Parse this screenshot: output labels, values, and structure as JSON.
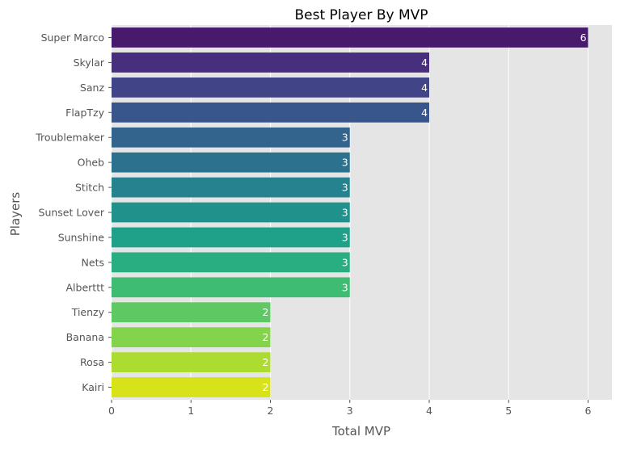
{
  "chart_data": {
    "type": "bar",
    "orientation": "horizontal",
    "title": "Best Player By MVP",
    "xlabel": "Total MVP",
    "ylabel": "Players",
    "categories": [
      "Super Marco",
      "Skylar",
      "Sanz",
      "FlapTzy",
      "Troublemaker",
      "Oheb",
      "Stitch",
      "Sunset Lover",
      "Sunshine",
      "Nets",
      "Alberttt",
      "Tienzy",
      "Banana",
      "Rosa",
      "Kairi"
    ],
    "values": [
      6,
      4,
      4,
      4,
      3,
      3,
      3,
      3,
      3,
      3,
      3,
      2,
      2,
      2,
      2
    ],
    "data_labels": [
      "6",
      "4",
      "4",
      "4",
      "3",
      "3",
      "3",
      "3",
      "3",
      "3",
      "3",
      "2",
      "2",
      "2",
      "2"
    ],
    "xlim": [
      0,
      6.3
    ],
    "xticks": [
      0,
      1,
      2,
      3,
      4,
      5,
      6
    ],
    "xtick_labels": [
      "0",
      "1",
      "2",
      "3",
      "4",
      "5",
      "6"
    ],
    "grid": true,
    "colormap": "viridis",
    "colors": [
      "#481a6c",
      "#472f7d",
      "#414487",
      "#39568c",
      "#32648e",
      "#2c728e",
      "#26828e",
      "#21918c",
      "#1fa088",
      "#28ae80",
      "#3fbc73",
      "#5ec962",
      "#84d44b",
      "#addc30",
      "#d8e219"
    ],
    "background_color": "#e5e5e5",
    "grid_color": "#ffffff"
  }
}
